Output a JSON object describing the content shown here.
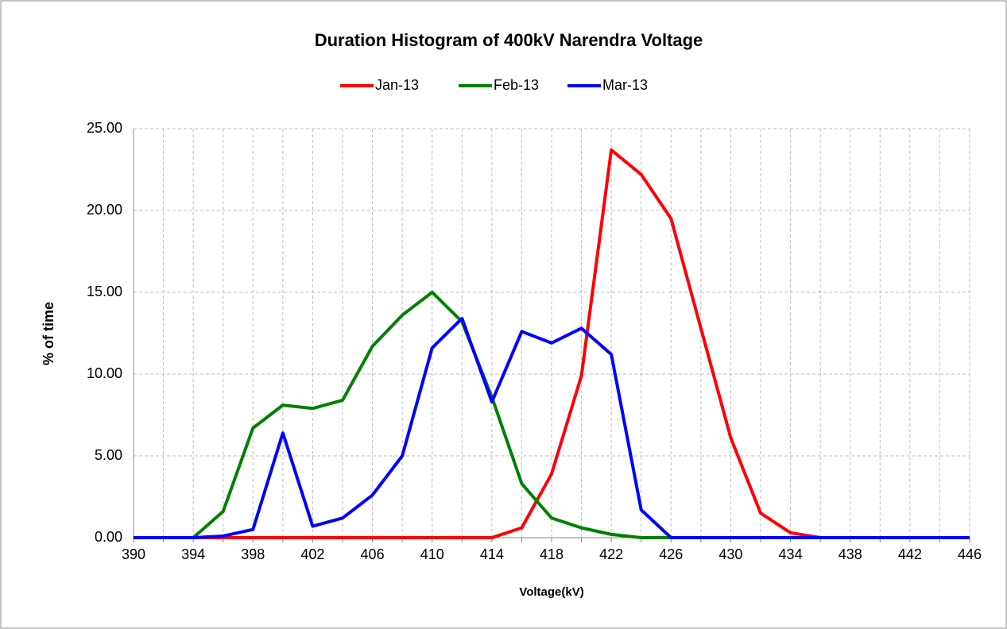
{
  "chart_data": {
    "type": "line",
    "title": "Duration Histogram of 400kV Narendra Voltage",
    "x_label": "Voltage(kV)",
    "y_label": "% of time",
    "categories": [
      "390",
      null,
      "394",
      null,
      "398",
      null,
      "402",
      null,
      "406",
      null,
      "410",
      null,
      "414",
      null,
      "418",
      null,
      "422",
      null,
      "426",
      null,
      "430",
      null,
      "434",
      null,
      "438",
      null,
      "442",
      null,
      "446"
    ],
    "series": [
      {
        "name": "Jan-13",
        "color": "#ff0000",
        "values": [
          0,
          0,
          0,
          0,
          0,
          0,
          0,
          0,
          0,
          0,
          0,
          0,
          0,
          0.6,
          3.9,
          9.9,
          23.7,
          22.2,
          19.5,
          12.8,
          6.1,
          1.5,
          0.3,
          0,
          0,
          0,
          0,
          0,
          0
        ]
      },
      {
        "name": "Feb-13",
        "color": "#008000",
        "values": [
          0,
          0,
          0,
          1.6,
          6.7,
          8.1,
          7.9,
          8.4,
          11.7,
          13.6,
          15.0,
          13.2,
          8.6,
          3.3,
          1.2,
          0.6,
          0.2,
          0,
          0,
          0,
          0,
          0,
          0,
          0,
          0,
          0,
          0,
          0,
          0
        ]
      },
      {
        "name": "Mar-13",
        "color": "#0000ff",
        "values": [
          0,
          0,
          0,
          0.1,
          0.5,
          6.4,
          0.7,
          1.2,
          2.6,
          5.0,
          11.6,
          13.4,
          8.3,
          12.6,
          11.9,
          12.8,
          11.2,
          1.7,
          0,
          0,
          0,
          0,
          0,
          0,
          0,
          0,
          0,
          0,
          0
        ]
      }
    ],
    "ylim": [
      0,
      25
    ],
    "yticks": [
      {
        "value": 0,
        "label": "0.00"
      },
      {
        "value": 5,
        "label": "5.00"
      },
      {
        "value": 10,
        "label": "10.00"
      },
      {
        "value": 15,
        "label": "15.00"
      },
      {
        "value": 20,
        "label": "20.00"
      },
      {
        "value": 25,
        "label": "25.00"
      }
    ],
    "grid": true,
    "legend": "top"
  }
}
